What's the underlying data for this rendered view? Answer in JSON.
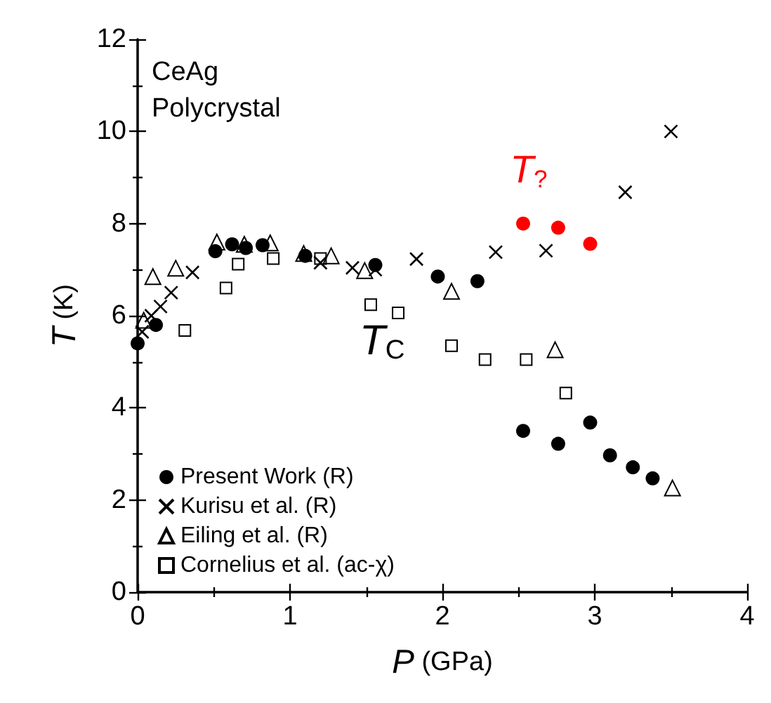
{
  "chart_data": {
    "type": "scatter",
    "xlabel": "P (GPa)",
    "ylabel": "T (K)",
    "xlim": [
      0,
      4
    ],
    "xticks": [
      0,
      1,
      2,
      3,
      4
    ],
    "ylim": [
      0,
      12
    ],
    "yticks": [
      0,
      2,
      4,
      6,
      8,
      10,
      12
    ],
    "grid": false,
    "legend": "bottom left",
    "annotations": [
      "CeAg",
      "Polycrystal",
      "T$_{C}$"
    ],
    "series": [
      {
        "name": "Present Work (R)",
        "color": "#000000",
        "marker": "circle",
        "x": [
          0,
          0.12,
          0.51,
          0.62,
          0.71,
          0.82,
          1.1,
          1.56,
          1.97,
          2.23,
          2.53,
          2.76,
          2.97,
          3.1,
          3.25,
          3.38
        ],
        "values": [
          5.4,
          5.8,
          7.4,
          7.55,
          7.47,
          7.53,
          7.3,
          7.1,
          6.85,
          6.75,
          3.5,
          3.22,
          3.68,
          2.97,
          2.71,
          2.47
        ]
      },
      {
        "name": "T$_{?}$",
        "color": "#ff0000",
        "marker": "circle",
        "x": [
          2.53,
          2.76,
          2.97
        ],
        "values": [
          8.0,
          7.91,
          7.56
        ]
      },
      {
        "name": "Kurisu et al. (R)",
        "color": "#000000",
        "marker": "cross",
        "x": [
          0.03,
          0.09,
          0.15,
          0.22,
          0.36,
          1.2,
          1.41,
          1.56,
          1.83,
          2.35,
          2.68,
          3.2,
          3.5
        ],
        "values": [
          5.65,
          6.0,
          6.2,
          6.5,
          6.94,
          7.15,
          7.04,
          7.0,
          7.23,
          7.38,
          7.41,
          8.68,
          10.0
        ]
      },
      {
        "name": "Eiling et al. (R)",
        "color": "#000000",
        "marker": "triangle",
        "x": [
          0.04,
          0.1,
          0.25,
          0.52,
          0.7,
          0.87,
          1.09,
          1.27,
          1.49,
          2.06,
          2.74,
          3.51
        ],
        "values": [
          5.9,
          6.85,
          7.03,
          7.6,
          7.55,
          7.58,
          7.35,
          7.3,
          6.98,
          6.53,
          5.26,
          2.26
        ]
      },
      {
        "name": "Cornelius et al. (ac-χ)",
        "color": "#000000",
        "marker": "square",
        "x": [
          0.31,
          0.58,
          0.66,
          0.89,
          1.2,
          1.53,
          1.71,
          2.06,
          2.28,
          2.55,
          2.81
        ],
        "values": [
          5.68,
          6.6,
          7.12,
          7.24,
          7.24,
          6.24,
          6.06,
          5.35,
          5.05,
          5.05,
          4.32
        ]
      }
    ]
  }
}
